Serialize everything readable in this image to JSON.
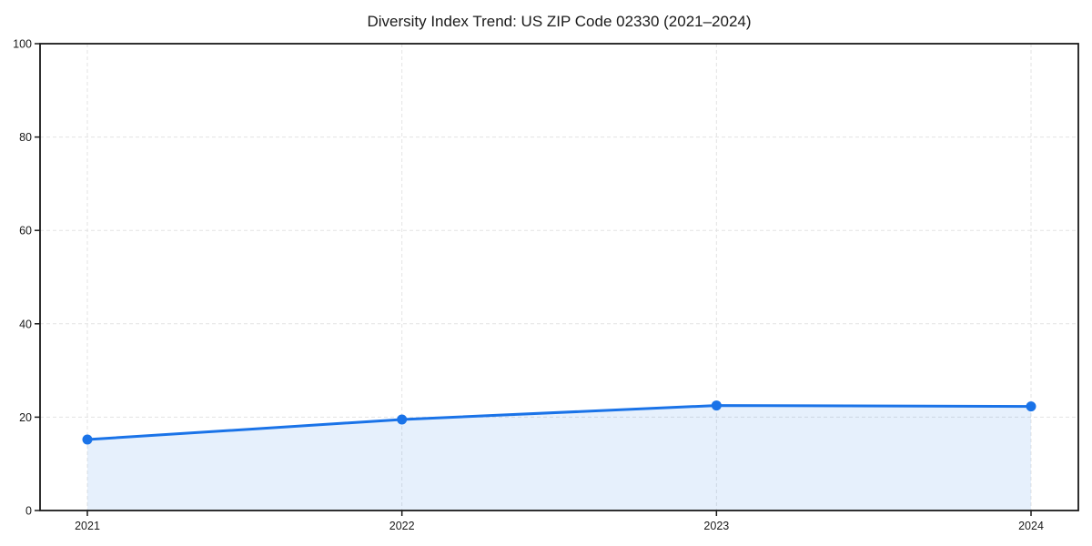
{
  "figure": {
    "background": "#ffffff"
  },
  "chart_data": {
    "type": "area",
    "title": "Diversity Index Trend: US ZIP Code 02330 (2021–2024)",
    "x": [
      2021,
      2022,
      2023,
      2024
    ],
    "series": [
      {
        "name": "Diversity Index",
        "values": [
          15.2,
          19.5,
          22.5,
          22.3
        ]
      }
    ],
    "xlabel": "",
    "ylabel": "",
    "ylim": [
      0,
      100
    ],
    "yticks": [
      0,
      20,
      40,
      60,
      80,
      100
    ],
    "xticks": [
      2021,
      2022,
      2023,
      2024
    ],
    "grid": true,
    "grid_style": "dashed",
    "legend_position": "none",
    "colors": {
      "line": "#1a73e8",
      "marker": "#1a73e8",
      "area_fill": "#1a73e8",
      "area_opacity": 0.11,
      "grid": "#e3e3e3",
      "spine": "#1a1a1a",
      "text": "#1a1a1a",
      "background": "#ffffff"
    }
  }
}
